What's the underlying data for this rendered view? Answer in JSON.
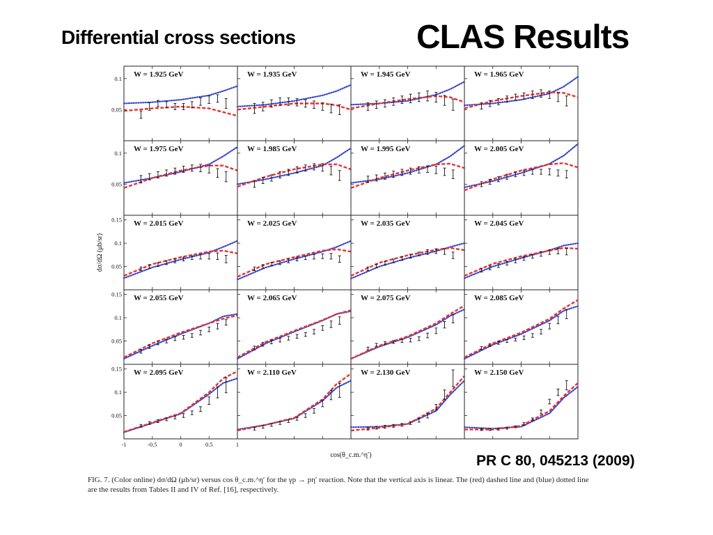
{
  "slide": {
    "title_left": "Differential cross sections",
    "title_right": "CLAS Results",
    "reference": "PR C 80, 045213 (2009)",
    "caption": "FIG. 7. (Color online) dσ/dΩ (μb/sr) versus cos θ_c.m.^η′ for the γp → pη′ reaction. Note that the vertical axis is linear. The (red) dashed line and (blue) dotted line are the results from Tables II and IV of Ref. [16], respectively."
  },
  "colors": {
    "red_curve": "#e8312e",
    "blue_curve": "#3344cc",
    "data": "#111111",
    "frame": "#222222"
  },
  "chart_data": {
    "type": "line",
    "layout": {
      "rows": 5,
      "cols": 4
    },
    "ylabel": "dσ/dΩ (μb/sr)",
    "xlabel": "cos(θ_c.m.^η′)",
    "xlim": [
      -1,
      1
    ],
    "x_ticks": [
      "-1",
      "-0.5",
      "0",
      "0.5",
      "1"
    ],
    "curve_x": [
      -1,
      -0.5,
      0,
      0.5,
      0.75,
      1
    ],
    "data_x": [
      -0.7,
      -0.55,
      -0.4,
      -0.25,
      -0.1,
      0.05,
      0.2,
      0.35,
      0.5,
      0.65,
      0.8
    ],
    "rows": [
      {
        "ylim": [
          0,
          0.12
        ],
        "y_ticks": [
          "0.1",
          "0.05"
        ]
      },
      {
        "ylim": [
          0,
          0.12
        ],
        "y_ticks": [
          "0.1",
          "0.05"
        ]
      },
      {
        "ylim": [
          0,
          0.16
        ],
        "y_ticks": [
          "0.15",
          "0.1",
          "0.05"
        ]
      },
      {
        "ylim": [
          0,
          0.16
        ],
        "y_ticks": [
          "0.15",
          "0.1",
          "0.05"
        ]
      },
      {
        "ylim": [
          0,
          0.16
        ],
        "y_ticks": [
          "0.15",
          "0.1",
          "0.05"
        ]
      }
    ],
    "panels": [
      {
        "label": "W = 1.925 GeV",
        "red": [
          0.048,
          0.052,
          0.055,
          0.052,
          0.046,
          0.04
        ],
        "blue": [
          0.06,
          0.062,
          0.066,
          0.073,
          0.08,
          0.088
        ],
        "data": [
          0.042,
          0.055,
          0.06,
          0.058,
          0.055,
          0.055,
          0.058,
          0.063,
          0.066,
          0.068,
          0.06
        ],
        "err": [
          0.006,
          0.006,
          0.005,
          0.005,
          0.005,
          0.005,
          0.005,
          0.006,
          0.006,
          0.006,
          0.008
        ]
      },
      {
        "label": "W = 1.935 GeV",
        "red": [
          0.05,
          0.055,
          0.06,
          0.06,
          0.057,
          0.05
        ],
        "blue": [
          0.055,
          0.058,
          0.064,
          0.073,
          0.08,
          0.09
        ],
        "data": [
          0.052,
          0.055,
          0.06,
          0.063,
          0.063,
          0.062,
          0.06,
          0.058,
          0.055,
          0.052,
          0.05
        ],
        "err": [
          0.008,
          0.007,
          0.006,
          0.006,
          0.006,
          0.006,
          0.006,
          0.006,
          0.006,
          0.007,
          0.008
        ]
      },
      {
        "label": "W = 1.945 GeV",
        "red": [
          0.052,
          0.06,
          0.067,
          0.072,
          0.07,
          0.062
        ],
        "blue": [
          0.058,
          0.06,
          0.064,
          0.074,
          0.083,
          0.095
        ],
        "data": [
          0.055,
          0.058,
          0.06,
          0.063,
          0.066,
          0.068,
          0.07,
          0.072,
          0.07,
          0.065,
          0.058
        ],
        "err": [
          0.006,
          0.006,
          0.006,
          0.006,
          0.006,
          0.007,
          0.007,
          0.008,
          0.008,
          0.008,
          0.009
        ]
      },
      {
        "label": "W = 1.965 GeV",
        "red": [
          0.052,
          0.064,
          0.072,
          0.078,
          0.077,
          0.07
        ],
        "blue": [
          0.057,
          0.06,
          0.066,
          0.076,
          0.087,
          0.103
        ],
        "data": [
          0.056,
          0.06,
          0.063,
          0.067,
          0.07,
          0.072,
          0.074,
          0.076,
          0.074,
          0.07,
          0.064
        ],
        "err": [
          0.005,
          0.005,
          0.005,
          0.005,
          0.005,
          0.005,
          0.006,
          0.006,
          0.006,
          0.007,
          0.008
        ]
      },
      {
        "label": "W = 1.975 GeV",
        "red": [
          0.044,
          0.06,
          0.072,
          0.08,
          0.08,
          0.072
        ],
        "blue": [
          0.052,
          0.06,
          0.07,
          0.082,
          0.095,
          0.11
        ],
        "data": [
          0.058,
          0.062,
          0.065,
          0.068,
          0.071,
          0.074,
          0.076,
          0.076,
          0.074,
          0.068,
          0.062
        ],
        "err": [
          0.006,
          0.005,
          0.005,
          0.005,
          0.005,
          0.005,
          0.005,
          0.006,
          0.006,
          0.007,
          0.008
        ]
      },
      {
        "label": "W = 1.985 GeV",
        "red": [
          0.046,
          0.062,
          0.074,
          0.082,
          0.082,
          0.074
        ],
        "blue": [
          0.05,
          0.058,
          0.068,
          0.08,
          0.093,
          0.108
        ],
        "data": [
          0.05,
          0.056,
          0.06,
          0.065,
          0.069,
          0.073,
          0.076,
          0.078,
          0.077,
          0.072,
          0.064
        ],
        "err": [
          0.005,
          0.005,
          0.005,
          0.005,
          0.005,
          0.005,
          0.005,
          0.005,
          0.006,
          0.007,
          0.008
        ]
      },
      {
        "label": "W = 1.995 GeV",
        "red": [
          0.044,
          0.06,
          0.072,
          0.082,
          0.083,
          0.076
        ],
        "blue": [
          0.052,
          0.058,
          0.068,
          0.082,
          0.095,
          0.112
        ],
        "data": [
          0.058,
          0.06,
          0.063,
          0.066,
          0.069,
          0.071,
          0.073,
          0.074,
          0.073,
          0.07,
          0.066
        ],
        "err": [
          0.005,
          0.005,
          0.005,
          0.005,
          0.005,
          0.005,
          0.005,
          0.005,
          0.006,
          0.006,
          0.007
        ]
      },
      {
        "label": "W = 2.005 GeV",
        "red": [
          0.04,
          0.058,
          0.072,
          0.082,
          0.084,
          0.077
        ],
        "blue": [
          0.045,
          0.055,
          0.068,
          0.083,
          0.096,
          0.115
        ],
        "data": [
          0.05,
          0.054,
          0.058,
          0.062,
          0.066,
          0.068,
          0.07,
          0.07,
          0.07,
          0.068,
          0.066
        ],
        "err": [
          0.004,
          0.004,
          0.004,
          0.004,
          0.004,
          0.004,
          0.004,
          0.004,
          0.005,
          0.005,
          0.006
        ]
      },
      {
        "label": "W = 2.015 GeV",
        "red": [
          0.03,
          0.055,
          0.07,
          0.082,
          0.084,
          0.078
        ],
        "blue": [
          0.025,
          0.048,
          0.065,
          0.08,
          0.092,
          0.105
        ],
        "data": [
          0.045,
          0.05,
          0.054,
          0.058,
          0.062,
          0.066,
          0.069,
          0.071,
          0.072,
          0.072,
          0.066
        ],
        "err": [
          0.004,
          0.004,
          0.004,
          0.004,
          0.004,
          0.004,
          0.004,
          0.005,
          0.006,
          0.007,
          0.008
        ]
      },
      {
        "label": "W = 2.025 GeV",
        "red": [
          0.028,
          0.055,
          0.07,
          0.084,
          0.087,
          0.082
        ],
        "blue": [
          0.022,
          0.048,
          0.066,
          0.082,
          0.092,
          0.105
        ],
        "data": [
          0.045,
          0.05,
          0.055,
          0.058,
          0.062,
          0.066,
          0.069,
          0.071,
          0.072,
          0.072,
          0.066
        ],
        "err": [
          0.004,
          0.004,
          0.004,
          0.004,
          0.004,
          0.004,
          0.004,
          0.005,
          0.005,
          0.006,
          0.007
        ]
      },
      {
        "label": "W = 2.035 GeV",
        "red": [
          0.03,
          0.058,
          0.074,
          0.086,
          0.09,
          0.085
        ],
        "blue": [
          0.024,
          0.05,
          0.068,
          0.083,
          0.092,
          0.1
        ],
        "data": [
          0.045,
          0.051,
          0.057,
          0.062,
          0.067,
          0.072,
          0.077,
          0.081,
          0.083,
          0.082,
          0.074
        ],
        "err": [
          0.004,
          0.004,
          0.004,
          0.004,
          0.004,
          0.004,
          0.004,
          0.005,
          0.005,
          0.006,
          0.007
        ]
      },
      {
        "label": "W = 2.045 GeV",
        "red": [
          0.03,
          0.056,
          0.072,
          0.084,
          0.09,
          0.088
        ],
        "blue": [
          0.025,
          0.05,
          0.068,
          0.085,
          0.095,
          0.1
        ],
        "data": [
          0.042,
          0.047,
          0.052,
          0.057,
          0.062,
          0.067,
          0.072,
          0.077,
          0.081,
          0.083,
          0.082
        ],
        "err": [
          0.004,
          0.004,
          0.004,
          0.004,
          0.004,
          0.004,
          0.004,
          0.005,
          0.005,
          0.006,
          0.007
        ]
      },
      {
        "label": "W = 2.055 GeV",
        "red": [
          0.015,
          0.045,
          0.068,
          0.088,
          0.098,
          0.105
        ],
        "blue": [
          0.012,
          0.04,
          0.065,
          0.088,
          0.103,
          0.108
        ],
        "data": [
          0.028,
          0.038,
          0.046,
          0.05,
          0.055,
          0.058,
          0.062,
          0.068,
          0.075,
          0.082,
          0.09
        ],
        "err": [
          0.004,
          0.004,
          0.004,
          0.004,
          0.004,
          0.004,
          0.004,
          0.005,
          0.005,
          0.006,
          0.006
        ]
      },
      {
        "label": "W = 2.065 GeV",
        "red": [
          0.015,
          0.048,
          0.072,
          0.095,
          0.108,
          0.116
        ],
        "blue": [
          0.012,
          0.045,
          0.07,
          0.094,
          0.108,
          0.114
        ],
        "data": [
          0.035,
          0.043,
          0.048,
          0.052,
          0.056,
          0.06,
          0.064,
          0.07,
          0.078,
          0.086,
          0.094
        ],
        "err": [
          0.004,
          0.004,
          0.004,
          0.004,
          0.004,
          0.004,
          0.004,
          0.005,
          0.005,
          0.007,
          0.008
        ]
      },
      {
        "label": "W = 2.075 GeV",
        "red": [
          0.012,
          0.04,
          0.06,
          0.088,
          0.108,
          0.126
        ],
        "blue": [
          0.012,
          0.038,
          0.058,
          0.085,
          0.104,
          0.118
        ],
        "data": [
          0.034,
          0.042,
          0.046,
          0.048,
          0.05,
          0.052,
          0.055,
          0.062,
          0.072,
          0.085,
          0.098
        ],
        "err": [
          0.003,
          0.003,
          0.003,
          0.003,
          0.003,
          0.004,
          0.004,
          0.005,
          0.006,
          0.007,
          0.009
        ]
      },
      {
        "label": "W = 2.085 GeV",
        "red": [
          0.015,
          0.045,
          0.068,
          0.098,
          0.12,
          0.138
        ],
        "blue": [
          0.012,
          0.042,
          0.065,
          0.094,
          0.115,
          0.125
        ],
        "data": [
          0.035,
          0.041,
          0.046,
          0.05,
          0.053,
          0.057,
          0.062,
          0.07,
          0.082,
          0.095,
          0.108
        ],
        "err": [
          0.003,
          0.003,
          0.003,
          0.003,
          0.003,
          0.004,
          0.004,
          0.005,
          0.006,
          0.008,
          0.01
        ]
      },
      {
        "label": "W = 2.095 GeV",
        "red": [
          0.015,
          0.035,
          0.055,
          0.1,
          0.13,
          0.145
        ],
        "blue": [
          0.014,
          0.034,
          0.054,
          0.096,
          0.12,
          0.13
        ],
        "data": [
          0.028,
          0.034,
          0.038,
          0.042,
          0.046,
          0.05,
          0.056,
          0.064,
          0.082,
          0.1,
          0.115
        ],
        "err": [
          0.003,
          0.003,
          0.003,
          0.003,
          0.003,
          0.004,
          0.004,
          0.005,
          0.008,
          0.012,
          0.016
        ]
      },
      {
        "label": "W = 2.110 GeV",
        "red": [
          0.018,
          0.03,
          0.045,
          0.085,
          0.118,
          0.14
        ],
        "blue": [
          0.02,
          0.03,
          0.044,
          0.082,
          0.11,
          0.125
        ],
        "data": [
          0.022,
          0.026,
          0.03,
          0.034,
          0.038,
          0.043,
          0.05,
          0.06,
          0.076,
          0.094,
          0.104
        ],
        "err": [
          0.003,
          0.003,
          0.003,
          0.003,
          0.003,
          0.003,
          0.004,
          0.005,
          0.007,
          0.01,
          0.015
        ]
      },
      {
        "label": "W = 2.130 GeV",
        "red": [
          0.018,
          0.024,
          0.032,
          0.065,
          0.1,
          0.135
        ],
        "blue": [
          0.025,
          0.026,
          0.032,
          0.06,
          0.095,
          0.125
        ],
        "data": [
          0.022,
          0.024,
          0.026,
          0.028,
          0.03,
          0.034,
          0.04,
          0.05,
          0.068,
          0.095,
          0.13
        ],
        "err": [
          0.003,
          0.003,
          0.003,
          0.003,
          0.003,
          0.003,
          0.004,
          0.005,
          0.006,
          0.01,
          0.018
        ]
      },
      {
        "label": "W = 2.150 GeV",
        "red": [
          0.02,
          0.02,
          0.028,
          0.06,
          0.092,
          0.12
        ],
        "blue": [
          0.025,
          0.022,
          0.026,
          0.055,
          0.088,
          0.112
        ],
        "data": [
          0.02,
          0.02,
          0.021,
          0.023,
          0.026,
          0.032,
          0.042,
          0.058,
          0.08,
          0.1,
          0.115
        ],
        "err": [
          0.002,
          0.002,
          0.002,
          0.002,
          0.002,
          0.003,
          0.003,
          0.004,
          0.005,
          0.007,
          0.01
        ]
      }
    ]
  }
}
